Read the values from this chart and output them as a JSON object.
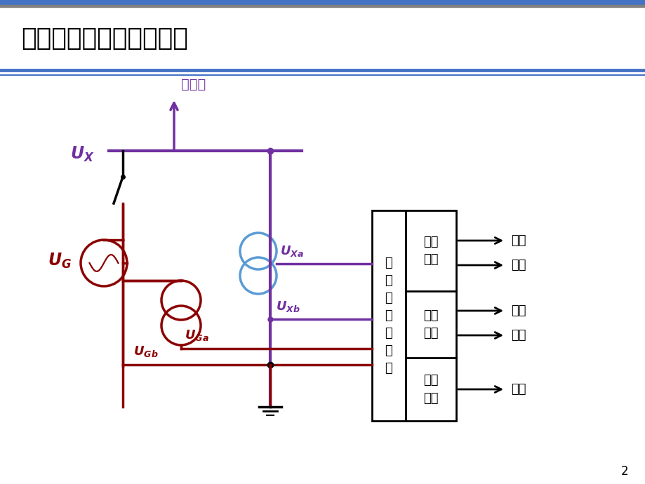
{
  "title": "自动准同期装置基本构成",
  "bg_color": "#ffffff",
  "title_color": "#000000",
  "blue_bar": "#4472c4",
  "gray_bar": "#808080",
  "purple": "#7030a0",
  "dark_red": "#8B0000",
  "blue_light": "#5b9bd5",
  "black": "#000000",
  "page_num": "2",
  "zhi_xt": "至系统",
  "ux": "U",
  "box_left_text": "自\n动\n准\n同\n期\n装\n置",
  "box_r1": "均频\n控制",
  "box_r2": "均压\n控制",
  "box_r3": "合闸\n控制",
  "out1": "增频",
  "out2": "减频",
  "out3": "升压",
  "out4": "降压",
  "out5": "合闸"
}
